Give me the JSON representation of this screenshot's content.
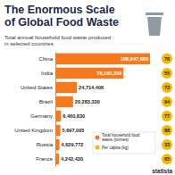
{
  "chart_data": {
    "type": "bar",
    "orientation": "horizontal",
    "title": "The Enormous Scale of Global Food Waste",
    "subtitle": "Total annual household food waste produced in selected countries",
    "brand": "statista",
    "categories": [
      "China",
      "India",
      "United States",
      "Brazil",
      "Germany",
      "United Kingdom",
      "Russia",
      "France"
    ],
    "series": [
      {
        "name": "Total household food waste (tonnes)",
        "color": "#f47a20",
        "values": [
          108647989,
          78192338,
          24714406,
          20283330,
          6460830,
          5697005,
          4629772,
          4242430
        ],
        "value_labels": [
          "108,647,989",
          "78,192,338",
          "24,714,406",
          "20,283,330",
          "6,460,830",
          "5,697,005",
          "4,629,772",
          "4,242,430"
        ]
      },
      {
        "name": "Per capita (kg)",
        "color": "#f5b800",
        "type": "dot",
        "values": [
          76,
          55,
          73,
          94,
          77,
          88,
          33,
          65
        ]
      }
    ],
    "xlim": [
      0,
      108647989
    ],
    "tick_labels": false,
    "data_labels": true,
    "legend": "bottom-right"
  }
}
